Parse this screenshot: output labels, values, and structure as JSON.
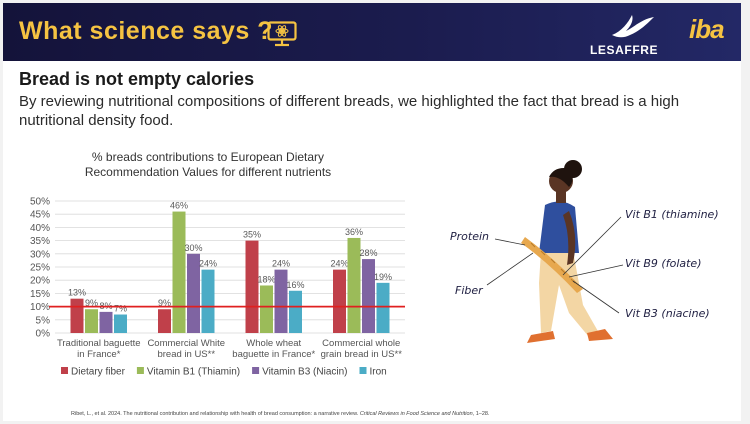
{
  "banner": {
    "title": "What science says ?",
    "brand": "LESAFFRE",
    "partner": "iba",
    "colors": {
      "background": "#1b1c4e",
      "accent": "#f5c342"
    },
    "icons": [
      "computer-screen-icon",
      "bird-logo-icon"
    ]
  },
  "heading": "Bread is not empty calories",
  "intro": "By reviewing nutritional compositions of different breads, we highlighted the fact that bread is a high nutritional density food.",
  "chart_data": {
    "type": "bar",
    "title": "% breads contributions to European Dietary Recommendation Values for different nutrients",
    "title_lines": [
      "% breads contributions to European Dietary",
      "Recommendation Values for different nutrients"
    ],
    "categories": [
      "Traditional  baguette in France*",
      "Commercial White bread in US**",
      "Whole wheat baguette in France*",
      "Commercial whole grain bread in US**"
    ],
    "category_lines": [
      [
        "Traditional  baguette",
        "in France*"
      ],
      [
        "Commercial White",
        "bread in US**"
      ],
      [
        "Whole wheat",
        "baguette in France*"
      ],
      [
        "Commercial whole",
        "grain bread in US**"
      ]
    ],
    "series": [
      {
        "name": "Dietary fiber",
        "color": "#c0404a",
        "values": [
          13,
          9,
          35,
          24
        ],
        "labels": [
          "13%",
          "9%",
          "35%",
          "24%"
        ]
      },
      {
        "name": "Vitamin B1 (Thiamin)",
        "color": "#9bbb59",
        "values": [
          9,
          46,
          18,
          36
        ],
        "labels": [
          "9%",
          "46%",
          "18%",
          "36%"
        ]
      },
      {
        "name": "Vitamin B3 (Niacin)",
        "color": "#7f64a2",
        "values": [
          8,
          30,
          24,
          28
        ],
        "labels": [
          "8%",
          "30%",
          "24%",
          "28%"
        ]
      },
      {
        "name": "Iron",
        "color": "#4bacc6",
        "values": [
          7,
          24,
          16,
          19
        ],
        "labels": [
          "7%",
          "24%",
          "16%",
          "19%"
        ]
      }
    ],
    "yticks": [
      "0%",
      "5%",
      "10%",
      "15%",
      "20%",
      "25%",
      "30%",
      "35%",
      "40%",
      "45%",
      "50%"
    ],
    "ylim": [
      0,
      50
    ],
    "reference_line": {
      "value": 10,
      "color": "#e02020"
    },
    "grid": true,
    "legend": "bottom"
  },
  "illustration": {
    "labels": {
      "protein": "Protein",
      "fiber": "Fiber",
      "vit_b1": "Vit B1 (thiamine)",
      "vit_b9": "Vit B9 (folate)",
      "vit_b3": "Vit B3 (niacine)"
    },
    "colors": {
      "shirt": "#2f4f9e",
      "trousers": "#f3d6a4",
      "skin": "#5a3524",
      "shoes": "#e07030",
      "baguette": "#e7a84e"
    }
  },
  "citation": {
    "authors": "Ribet, L., et al. 2024. The nutritional contribution and relationship with health of bread consumption: a narrative review.",
    "journal": "Critical Reviews in Food Science and Nutrition",
    "pages": ", 1–28."
  }
}
